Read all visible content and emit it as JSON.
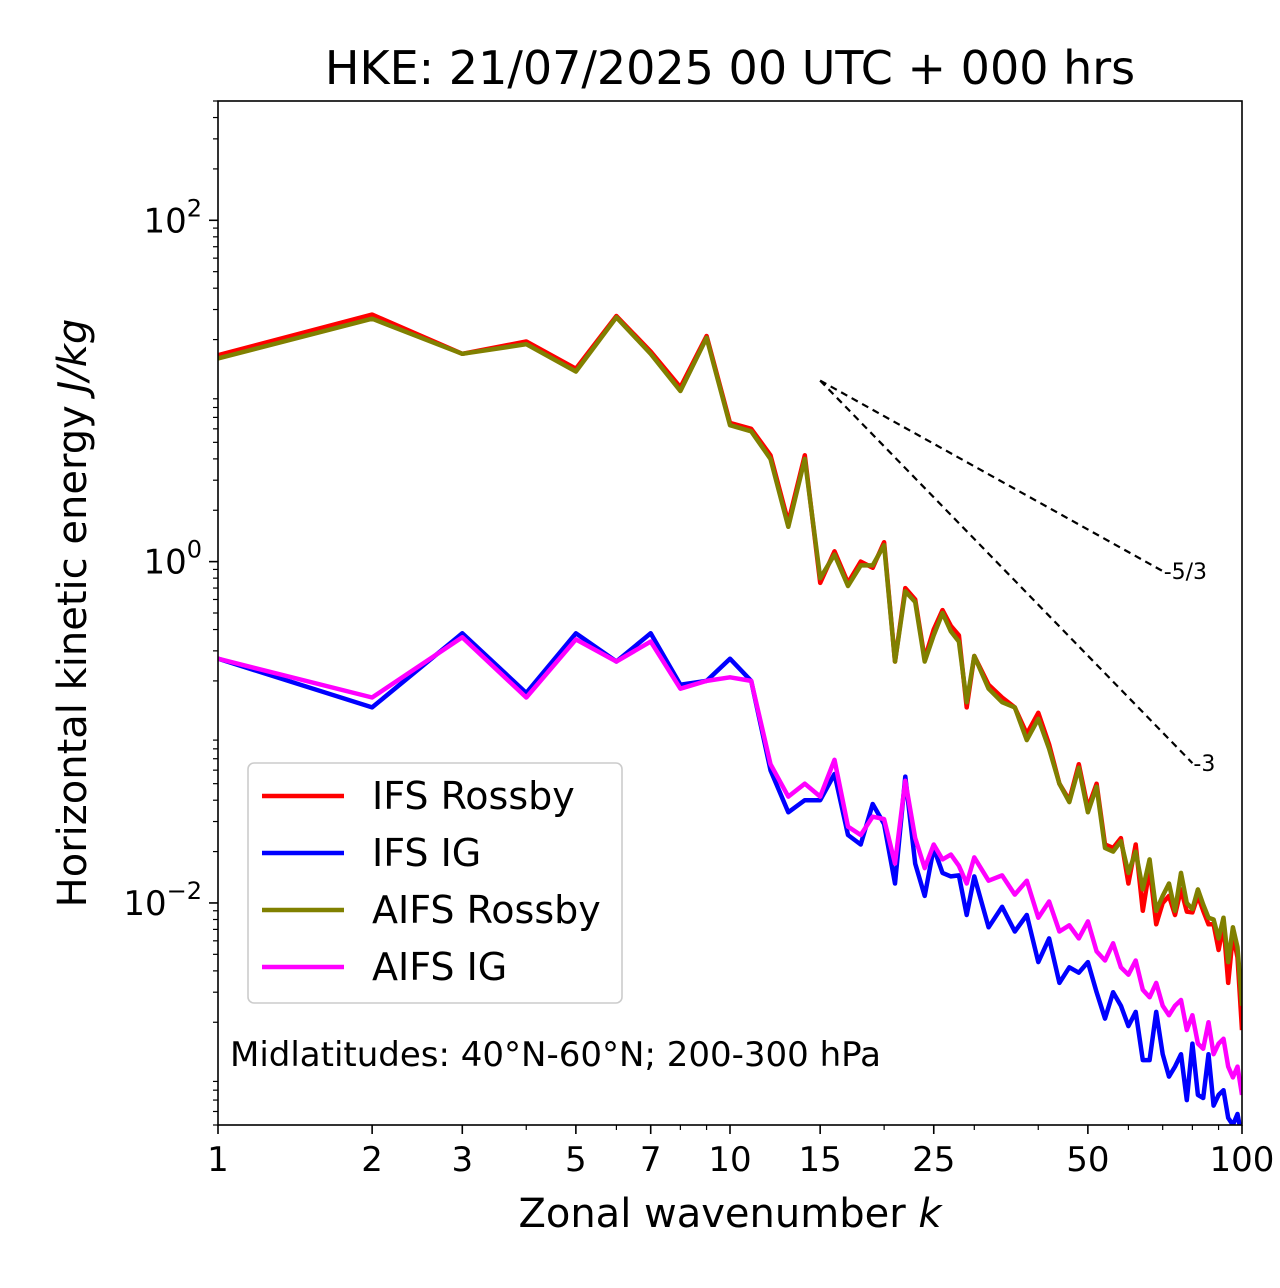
{
  "chart_data": {
    "type": "line",
    "title": "HKE: 21/07/2025 00 UTC + 000 hrs",
    "xlabel": "Zonal wavenumber",
    "xlabel_var": "k",
    "ylabel": "Horizontal kinetic energy",
    "ylabel_unit": "J/kg",
    "xscale": "log",
    "yscale": "log",
    "xlim": [
      1,
      100
    ],
    "ylim": [
      0.0005,
      500
    ],
    "xticks": [
      1,
      2,
      3,
      5,
      7,
      10,
      15,
      25,
      50,
      100
    ],
    "xtick_labels": [
      "1",
      "2",
      "3",
      "5",
      "7",
      "10",
      "15",
      "25",
      "50",
      "100"
    ],
    "yticks": [
      {
        "value": 0.01,
        "base": "10",
        "exp": "−2"
      },
      {
        "value": 1,
        "base": "10",
        "exp": "0"
      },
      {
        "value": 100,
        "base": "10",
        "exp": "2"
      }
    ],
    "legend_position": "lower-left",
    "annotation": "Midlatitudes: 40°N-60°N; 200-300 hPa",
    "reference_slopes": [
      {
        "label": "-5/3",
        "x": [
          15,
          70
        ],
        "y": [
          11.5,
          0.88
        ]
      },
      {
        "label": "-3",
        "x": [
          15,
          80
        ],
        "y": [
          11.5,
          0.066
        ]
      }
    ],
    "series": [
      {
        "name": "IFS Rossby",
        "color": "#ff0000",
        "x": [
          1,
          2,
          3,
          4,
          5,
          6,
          7,
          8,
          9,
          10,
          11,
          12,
          13,
          14,
          15,
          16,
          17,
          18,
          19,
          20,
          21,
          22,
          23,
          24,
          25,
          26,
          27,
          28,
          29,
          30,
          32,
          34,
          36,
          38,
          40,
          42,
          44,
          46,
          48,
          50,
          52,
          54,
          56,
          58,
          60,
          62,
          64,
          66,
          68,
          70,
          72,
          74,
          76,
          78,
          80,
          82,
          84,
          86,
          88,
          90,
          92,
          94,
          96,
          98,
          100
        ],
        "values": [
          16.2,
          28.0,
          16.5,
          19.5,
          13.5,
          27.5,
          17.0,
          10.5,
          21.0,
          6.5,
          6.0,
          4.2,
          1.7,
          4.2,
          0.75,
          1.15,
          0.75,
          1.0,
          0.92,
          1.3,
          0.26,
          0.7,
          0.6,
          0.27,
          0.4,
          0.52,
          0.42,
          0.37,
          0.14,
          0.28,
          0.19,
          0.16,
          0.14,
          0.098,
          0.13,
          0.085,
          0.05,
          0.04,
          0.065,
          0.036,
          0.05,
          0.022,
          0.021,
          0.024,
          0.013,
          0.022,
          0.009,
          0.016,
          0.0075,
          0.01,
          0.011,
          0.0085,
          0.012,
          0.0089,
          0.0088,
          0.011,
          0.009,
          0.0075,
          0.0075,
          0.0053,
          0.0075,
          0.0034,
          0.0065,
          0.0048,
          0.0018
        ]
      },
      {
        "name": "IFS IG",
        "color": "#0000ff",
        "x": [
          1,
          2,
          3,
          4,
          5,
          6,
          7,
          8,
          9,
          10,
          11,
          12,
          13,
          14,
          15,
          16,
          17,
          18,
          19,
          20,
          21,
          22,
          23,
          24,
          25,
          26,
          27,
          28,
          29,
          30,
          32,
          34,
          36,
          38,
          40,
          42,
          44,
          46,
          48,
          50,
          52,
          54,
          56,
          58,
          60,
          62,
          64,
          66,
          68,
          70,
          72,
          74,
          76,
          78,
          80,
          82,
          84,
          86,
          88,
          90,
          92,
          94,
          96,
          98,
          100
        ],
        "values": [
          0.27,
          0.14,
          0.38,
          0.17,
          0.38,
          0.26,
          0.38,
          0.19,
          0.2,
          0.27,
          0.2,
          0.06,
          0.034,
          0.04,
          0.04,
          0.057,
          0.025,
          0.022,
          0.038,
          0.029,
          0.013,
          0.055,
          0.017,
          0.011,
          0.021,
          0.015,
          0.0143,
          0.0145,
          0.0085,
          0.0143,
          0.0072,
          0.0095,
          0.0068,
          0.0085,
          0.0045,
          0.0062,
          0.0034,
          0.0042,
          0.0039,
          0.0045,
          0.003,
          0.0021,
          0.003,
          0.0025,
          0.0019,
          0.0023,
          0.0012,
          0.0012,
          0.0023,
          0.0013,
          0.00096,
          0.0011,
          0.0013,
          0.0007,
          0.0015,
          0.00075,
          0.00072,
          0.0013,
          0.00065,
          0.00075,
          0.0008,
          0.00055,
          0.0005,
          0.00058,
          0.00042
        ]
      },
      {
        "name": "AIFS Rossby",
        "color": "#808000",
        "x": [
          1,
          2,
          3,
          4,
          5,
          6,
          7,
          8,
          9,
          10,
          11,
          12,
          13,
          14,
          15,
          16,
          17,
          18,
          19,
          20,
          21,
          22,
          23,
          24,
          25,
          26,
          27,
          28,
          29,
          30,
          32,
          34,
          36,
          38,
          40,
          42,
          44,
          46,
          48,
          50,
          52,
          54,
          56,
          58,
          60,
          62,
          64,
          66,
          68,
          70,
          72,
          74,
          76,
          78,
          80,
          82,
          84,
          86,
          88,
          90,
          92,
          94,
          96,
          98,
          100
        ],
        "values": [
          15.5,
          26.5,
          16.5,
          18.8,
          13.0,
          27.0,
          16.5,
          10.0,
          20.5,
          6.3,
          5.8,
          4.0,
          1.6,
          4.0,
          0.8,
          1.1,
          0.72,
          0.95,
          0.95,
          1.25,
          0.26,
          0.67,
          0.58,
          0.26,
          0.37,
          0.5,
          0.39,
          0.34,
          0.15,
          0.28,
          0.18,
          0.15,
          0.14,
          0.09,
          0.12,
          0.08,
          0.05,
          0.039,
          0.062,
          0.034,
          0.048,
          0.021,
          0.02,
          0.023,
          0.015,
          0.02,
          0.012,
          0.018,
          0.009,
          0.011,
          0.013,
          0.009,
          0.015,
          0.01,
          0.0092,
          0.012,
          0.0098,
          0.0082,
          0.008,
          0.0062,
          0.0082,
          0.0045,
          0.0072,
          0.0055,
          0.0025
        ]
      },
      {
        "name": "AIFS IG",
        "color": "#ff00ff",
        "x": [
          1,
          2,
          3,
          4,
          5,
          6,
          7,
          8,
          9,
          10,
          11,
          12,
          13,
          14,
          15,
          16,
          17,
          18,
          19,
          20,
          21,
          22,
          23,
          24,
          25,
          26,
          27,
          28,
          29,
          30,
          32,
          34,
          36,
          38,
          40,
          42,
          44,
          46,
          48,
          50,
          52,
          54,
          56,
          58,
          60,
          62,
          64,
          66,
          68,
          70,
          72,
          74,
          76,
          78,
          80,
          82,
          84,
          86,
          88,
          90,
          92,
          94,
          96,
          98,
          100
        ],
        "values": [
          0.27,
          0.16,
          0.36,
          0.16,
          0.35,
          0.26,
          0.34,
          0.18,
          0.2,
          0.21,
          0.2,
          0.065,
          0.042,
          0.05,
          0.042,
          0.069,
          0.028,
          0.025,
          0.032,
          0.031,
          0.017,
          0.052,
          0.024,
          0.016,
          0.022,
          0.018,
          0.0192,
          0.0165,
          0.013,
          0.0185,
          0.0135,
          0.0145,
          0.0112,
          0.0135,
          0.0082,
          0.0102,
          0.0068,
          0.0074,
          0.0062,
          0.0078,
          0.0052,
          0.0046,
          0.0058,
          0.0042,
          0.0038,
          0.0046,
          0.0031,
          0.0028,
          0.0034,
          0.0025,
          0.0022,
          0.0025,
          0.0027,
          0.0018,
          0.0022,
          0.0015,
          0.0014,
          0.002,
          0.0013,
          0.0015,
          0.0016,
          0.0011,
          0.00095,
          0.0011,
          0.00075
        ]
      }
    ]
  }
}
